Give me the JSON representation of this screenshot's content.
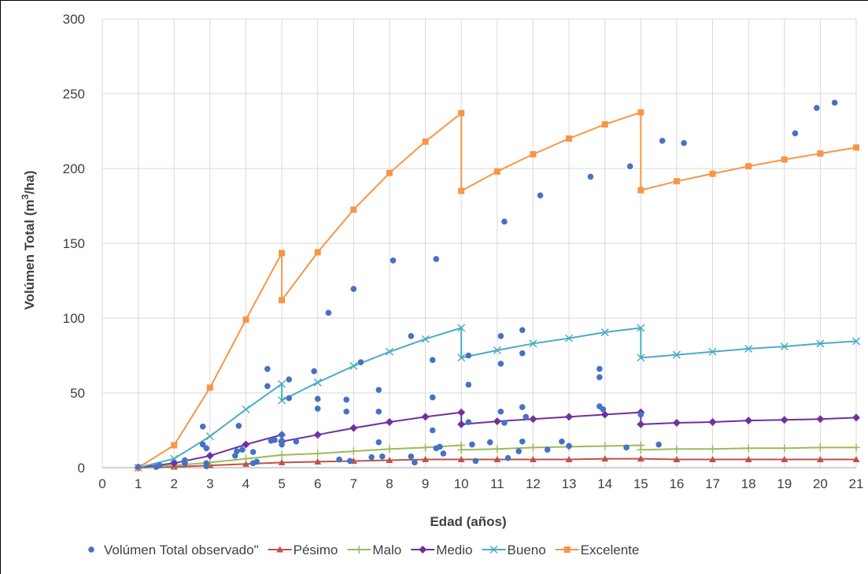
{
  "chart_data": {
    "type": "line",
    "xlabel": "Edad (años)",
    "ylabel_main": "Volúmen Total (m",
    "ylabel_sup": "3",
    "ylabel_tail": "/ha)",
    "xlim": [
      0,
      21
    ],
    "ylim": [
      0,
      300
    ],
    "x_ticks": [
      0,
      1,
      2,
      3,
      4,
      5,
      6,
      7,
      8,
      9,
      10,
      11,
      12,
      13,
      14,
      15,
      16,
      17,
      18,
      19,
      20,
      21
    ],
    "y_ticks": [
      0,
      50,
      100,
      150,
      200,
      250,
      300
    ],
    "grid": true,
    "legend_position": "bottom",
    "scatter": {
      "name": "Volúmen Total observado\"",
      "color": "#4472C4",
      "points": [
        [
          1.0,
          0.5
        ],
        [
          1.5,
          0.5
        ],
        [
          1.6,
          1.5
        ],
        [
          2.3,
          3.0
        ],
        [
          2.3,
          5.0
        ],
        [
          2.8,
          27.5
        ],
        [
          2.8,
          15.5
        ],
        [
          2.9,
          13.0
        ],
        [
          2.9,
          1.0
        ],
        [
          2.9,
          3.0
        ],
        [
          3.7,
          8.0
        ],
        [
          3.75,
          11.0
        ],
        [
          3.8,
          28.0
        ],
        [
          3.9,
          12.0
        ],
        [
          4.2,
          10.5
        ],
        [
          4.2,
          3.0
        ],
        [
          4.3,
          4.0
        ],
        [
          4.6,
          66.0
        ],
        [
          4.6,
          54.5
        ],
        [
          4.7,
          18.0
        ],
        [
          4.8,
          18.5
        ],
        [
          5.0,
          22.0
        ],
        [
          5.0,
          18.0
        ],
        [
          5.0,
          15.5
        ],
        [
          5.2,
          59.0
        ],
        [
          5.2,
          46.5
        ],
        [
          5.4,
          17.5
        ],
        [
          5.9,
          64.5
        ],
        [
          6.0,
          46.0
        ],
        [
          6.0,
          39.5
        ],
        [
          6.3,
          103.5
        ],
        [
          6.6,
          5.5
        ],
        [
          6.8,
          45.5
        ],
        [
          6.8,
          37.5
        ],
        [
          6.9,
          4.5
        ],
        [
          7.0,
          119.5
        ],
        [
          7.2,
          70.5
        ],
        [
          7.5,
          7.0
        ],
        [
          7.7,
          52.0
        ],
        [
          7.7,
          37.5
        ],
        [
          7.7,
          17.0
        ],
        [
          7.8,
          7.5
        ],
        [
          8.1,
          138.5
        ],
        [
          8.6,
          88.0
        ],
        [
          8.6,
          7.5
        ],
        [
          8.7,
          3.5
        ],
        [
          9.2,
          72.0
        ],
        [
          9.2,
          47.0
        ],
        [
          9.2,
          25.0
        ],
        [
          9.3,
          139.5
        ],
        [
          9.3,
          13.0
        ],
        [
          9.4,
          14.0
        ],
        [
          9.5,
          9.5
        ],
        [
          10.2,
          75.0
        ],
        [
          10.2,
          55.5
        ],
        [
          10.2,
          30.5
        ],
        [
          10.3,
          15.5
        ],
        [
          10.4,
          4.5
        ],
        [
          10.8,
          17.0
        ],
        [
          11.1,
          88.0
        ],
        [
          11.1,
          69.5
        ],
        [
          11.1,
          37.5
        ],
        [
          11.2,
          164.5
        ],
        [
          11.2,
          30.0
        ],
        [
          11.3,
          6.5
        ],
        [
          11.6,
          11.0
        ],
        [
          11.7,
          92.0
        ],
        [
          11.7,
          76.5
        ],
        [
          11.7,
          40.5
        ],
        [
          11.7,
          17.5
        ],
        [
          11.8,
          34.0
        ],
        [
          12.2,
          182.0
        ],
        [
          12.4,
          12.0
        ],
        [
          12.8,
          17.5
        ],
        [
          13.0,
          14.5
        ],
        [
          13.6,
          194.5
        ],
        [
          13.85,
          66.0
        ],
        [
          13.85,
          60.5
        ],
        [
          13.85,
          41.0
        ],
        [
          13.95,
          39.0
        ],
        [
          14.6,
          13.5
        ],
        [
          14.7,
          201.5
        ],
        [
          15.0,
          35.5
        ],
        [
          15.5,
          15.5
        ],
        [
          15.6,
          218.5
        ],
        [
          16.2,
          217.0
        ],
        [
          19.3,
          223.5
        ],
        [
          19.9,
          240.5
        ],
        [
          20.4,
          244.0
        ]
      ]
    },
    "series": [
      {
        "name": "Pésimo",
        "color": "#C0504D",
        "marker": "triangle",
        "points": [
          [
            1,
            0
          ],
          [
            2,
            0.5
          ],
          [
            3,
            1.5
          ],
          [
            4,
            2.5
          ],
          [
            5,
            3.5
          ],
          [
            6,
            4.0
          ],
          [
            7,
            4.5
          ],
          [
            8,
            5.0
          ],
          [
            9,
            5.5
          ],
          [
            10,
            5.5
          ],
          [
            11,
            5.5
          ],
          [
            12,
            5.5
          ],
          [
            13,
            5.5
          ],
          [
            14,
            6.0
          ],
          [
            15,
            6.0
          ],
          [
            16,
            5.5
          ],
          [
            17,
            5.5
          ],
          [
            18,
            5.5
          ],
          [
            19,
            5.5
          ],
          [
            20,
            5.5
          ],
          [
            21,
            5.5
          ]
        ]
      },
      {
        "name": "Malo",
        "color": "#9BBB59",
        "marker": "plus",
        "points": [
          [
            1,
            0
          ],
          [
            2,
            1.5
          ],
          [
            3,
            3.5
          ],
          [
            4,
            6.0
          ],
          [
            5,
            8.5
          ],
          [
            6,
            9.5
          ],
          [
            7,
            11.0
          ],
          [
            8,
            12.5
          ],
          [
            9,
            13.5
          ],
          [
            10,
            15.0
          ],
          [
            10,
            12.0
          ],
          [
            11,
            12.5
          ],
          [
            12,
            13.5
          ],
          [
            13,
            14.0
          ],
          [
            14,
            14.5
          ],
          [
            15,
            15.0
          ],
          [
            15,
            12.0
          ],
          [
            16,
            12.5
          ],
          [
            17,
            12.5
          ],
          [
            18,
            13.0
          ],
          [
            19,
            13.0
          ],
          [
            20,
            13.5
          ],
          [
            21,
            13.5
          ]
        ]
      },
      {
        "name": "Medio",
        "color": "#7030A0",
        "marker": "diamond",
        "points": [
          [
            1,
            0
          ],
          [
            2,
            3.0
          ],
          [
            3,
            8.0
          ],
          [
            4,
            15.5
          ],
          [
            5,
            22.0
          ],
          [
            5,
            17.5
          ],
          [
            6,
            22.0
          ],
          [
            7,
            26.5
          ],
          [
            8,
            30.5
          ],
          [
            9,
            34.0
          ],
          [
            10,
            37.0
          ],
          [
            10,
            29.0
          ],
          [
            11,
            31.0
          ],
          [
            12,
            32.5
          ],
          [
            13,
            34.0
          ],
          [
            14,
            35.5
          ],
          [
            15,
            37.0
          ],
          [
            15,
            29.0
          ],
          [
            16,
            30.0
          ],
          [
            17,
            30.5
          ],
          [
            18,
            31.5
          ],
          [
            19,
            32.0
          ],
          [
            20,
            32.5
          ],
          [
            21,
            33.5
          ]
        ]
      },
      {
        "name": "Bueno",
        "color": "#4BACC6",
        "marker": "x",
        "points": [
          [
            1,
            0
          ],
          [
            2,
            6.0
          ],
          [
            3,
            21.0
          ],
          [
            4,
            39.0
          ],
          [
            5,
            56.0
          ],
          [
            5,
            45.0
          ],
          [
            6,
            57.0
          ],
          [
            7,
            68.0
          ],
          [
            8,
            77.5
          ],
          [
            9,
            86.0
          ],
          [
            10,
            93.5
          ],
          [
            10,
            73.5
          ],
          [
            11,
            78.5
          ],
          [
            12,
            83.0
          ],
          [
            13,
            86.5
          ],
          [
            14,
            90.5
          ],
          [
            15,
            93.5
          ],
          [
            15,
            73.5
          ],
          [
            16,
            75.5
          ],
          [
            17,
            77.5
          ],
          [
            18,
            79.5
          ],
          [
            19,
            81.0
          ],
          [
            20,
            83.0
          ],
          [
            21,
            84.5
          ]
        ]
      },
      {
        "name": "Excelente",
        "color": "#F79646",
        "marker": "square",
        "points": [
          [
            1,
            0
          ],
          [
            2,
            15.0
          ],
          [
            3,
            53.5
          ],
          [
            4,
            99.0
          ],
          [
            5,
            143.5
          ],
          [
            5,
            112.0
          ],
          [
            6,
            144.0
          ],
          [
            7,
            172.5
          ],
          [
            8,
            197.0
          ],
          [
            9,
            218.0
          ],
          [
            10,
            237.0
          ],
          [
            10,
            185.0
          ],
          [
            11,
            198.0
          ],
          [
            12,
            209.5
          ],
          [
            13,
            220.0
          ],
          [
            14,
            229.5
          ],
          [
            15,
            237.5
          ],
          [
            15,
            185.5
          ],
          [
            16,
            191.5
          ],
          [
            17,
            196.5
          ],
          [
            18,
            201.5
          ],
          [
            19,
            206.0
          ],
          [
            20,
            210.0
          ],
          [
            21,
            214.0
          ]
        ]
      }
    ]
  }
}
